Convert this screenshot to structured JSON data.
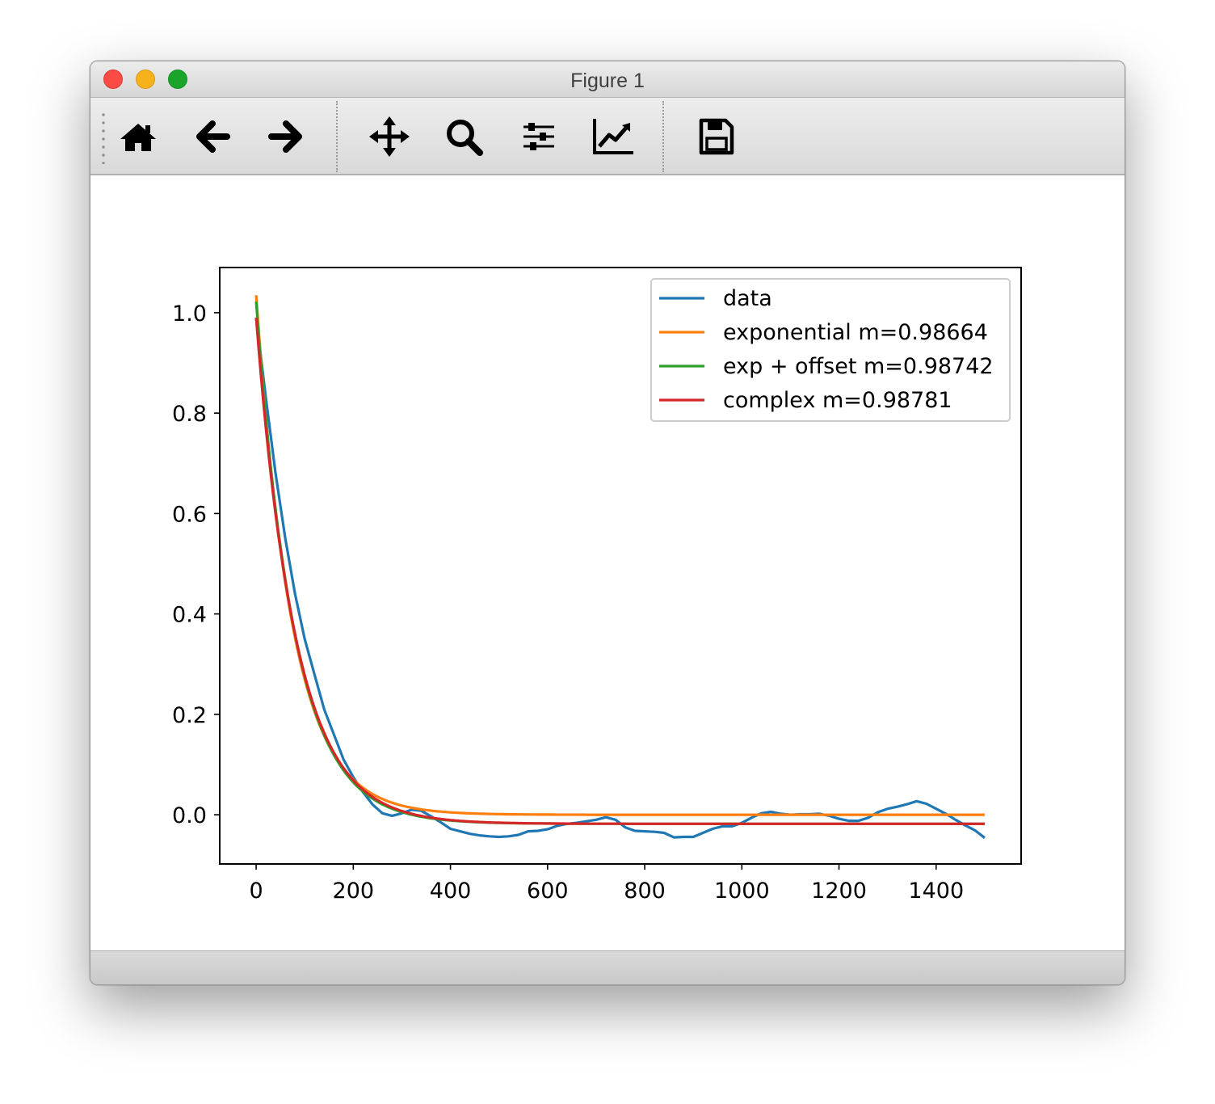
{
  "window": {
    "title": "Figure 1"
  },
  "toolbar": {
    "buttons": [
      {
        "name": "home-button",
        "icon": "home-icon"
      },
      {
        "name": "back-button",
        "icon": "arrow-left-icon"
      },
      {
        "name": "forward-button",
        "icon": "arrow-right-icon"
      },
      {
        "name": "pan-button",
        "icon": "move-icon"
      },
      {
        "name": "zoom-button",
        "icon": "magnifier-icon"
      },
      {
        "name": "configure-subplots-button",
        "icon": "sliders-icon"
      },
      {
        "name": "edit-axis-button",
        "icon": "line-chart-icon"
      },
      {
        "name": "save-button",
        "icon": "floppy-disk-icon"
      }
    ]
  },
  "chart_data": {
    "type": "line",
    "xlim": [
      -75,
      1575
    ],
    "ylim": [
      -0.098,
      1.09
    ],
    "x_ticks": [
      0,
      200,
      400,
      600,
      800,
      1000,
      1200,
      1400
    ],
    "y_ticks": [
      0.0,
      0.2,
      0.4,
      0.6,
      0.8,
      1.0
    ],
    "grid": false,
    "legend_position": "upper right",
    "series": [
      {
        "name": "data",
        "color": "#1f77b4",
        "x": [
          0,
          20,
          40,
          60,
          80,
          100,
          120,
          140,
          160,
          180,
          200,
          220,
          240,
          260,
          280,
          300,
          320,
          340,
          360,
          380,
          400,
          420,
          440,
          460,
          480,
          500,
          520,
          540,
          560,
          580,
          600,
          620,
          640,
          660,
          680,
          700,
          720,
          740,
          760,
          780,
          800,
          820,
          840,
          860,
          880,
          900,
          920,
          940,
          960,
          980,
          1000,
          1020,
          1040,
          1060,
          1080,
          1100,
          1120,
          1140,
          1160,
          1180,
          1200,
          1220,
          1240,
          1260,
          1280,
          1300,
          1320,
          1340,
          1360,
          1380,
          1400,
          1420,
          1440,
          1460,
          1480,
          1500
        ],
        "y": [
          0.99,
          0.83,
          0.68,
          0.55,
          0.44,
          0.35,
          0.28,
          0.21,
          0.16,
          0.11,
          0.075,
          0.045,
          0.02,
          0.003,
          -0.002,
          0.003,
          0.01,
          0.008,
          -0.003,
          -0.015,
          -0.028,
          -0.033,
          -0.038,
          -0.041,
          -0.043,
          -0.044,
          -0.043,
          -0.04,
          -0.033,
          -0.032,
          -0.029,
          -0.022,
          -0.018,
          -0.016,
          -0.013,
          -0.01,
          -0.005,
          -0.01,
          -0.025,
          -0.032,
          -0.033,
          -0.034,
          -0.036,
          -0.045,
          -0.044,
          -0.044,
          -0.036,
          -0.028,
          -0.023,
          -0.023,
          -0.016,
          -0.006,
          0.003,
          0.006,
          0.002,
          0.0,
          0.001,
          0.001,
          0.002,
          -0.002,
          -0.008,
          -0.012,
          -0.012,
          -0.006,
          0.005,
          0.012,
          0.016,
          0.021,
          0.027,
          0.022,
          0.012,
          0.002,
          -0.01,
          -0.021,
          -0.031,
          -0.046
        ]
      },
      {
        "name": "exponential m=0.98664",
        "color": "#ff7f0e",
        "model": {
          "a": 1.035,
          "m": 0.98664,
          "c": 0.0
        },
        "x_range": [
          0,
          1500
        ]
      },
      {
        "name": "exp + offset m=0.98742",
        "color": "#2ca02c",
        "model": {
          "a": 1.04,
          "m": 0.98742,
          "c": -0.018
        },
        "x_range": [
          0,
          1500
        ]
      },
      {
        "name": "complex m=0.98781",
        "color": "#d62728",
        "model": {
          "a": 1.008,
          "m": 0.98781,
          "c": -0.018
        },
        "x_range": [
          0,
          1500
        ]
      }
    ]
  }
}
